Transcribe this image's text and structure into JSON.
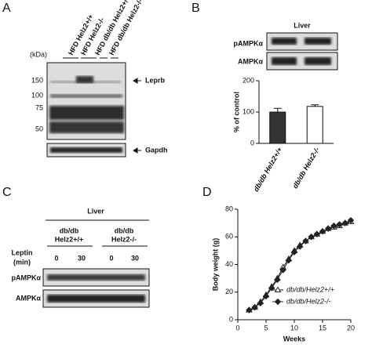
{
  "panel_labels": [
    "A",
    "B",
    "C",
    "D"
  ],
  "panel_a": {
    "lanes": [
      "HFD Helz2+/+",
      "HFD Helz2-/-",
      "HFD db/db Helz2+/+",
      "HFD db/db Helz2-/-"
    ],
    "unit": "(kDa)",
    "markers": [
      150,
      100,
      75,
      50
    ],
    "targets": [
      "Leprb",
      "Gapdh"
    ]
  },
  "panel_b": {
    "tissue": "Liver",
    "blots": [
      "pAMPKα",
      "AMPKα"
    ]
  },
  "panel_c": {
    "tissue": "Liver",
    "groups": [
      [
        "db/db",
        "Helz2+/+"
      ],
      [
        "db/db",
        "Helz2-/-"
      ]
    ],
    "treatment": [
      "Leptin",
      "(min)"
    ],
    "doses": [
      0,
      30,
      0,
      30
    ],
    "blots": [
      "pAMPKα",
      "AMPKα"
    ]
  },
  "chart_data": [
    {
      "type": "bar",
      "y_label": "% of control",
      "categories": [
        "db/db Helz2+/+",
        "db/db Helz2-/-"
      ],
      "values": [
        100,
        118
      ],
      "errors": [
        12,
        5
      ],
      "colors": [
        "#333333",
        "#ffffff"
      ],
      "ylim": [
        0,
        200
      ],
      "yticks": [
        0,
        100,
        200
      ]
    },
    {
      "type": "line",
      "x_label": "Weeks",
      "y_label": "Body weight (g)",
      "x": [
        2,
        3,
        4,
        5,
        6,
        7,
        8,
        9,
        10,
        11,
        12,
        13,
        14,
        15,
        16,
        17,
        18,
        19,
        20
      ],
      "series": [
        {
          "name": "db/db/Helz2+/+",
          "color": "#222222",
          "marker": "triangle-open",
          "values": [
            7,
            9,
            13,
            18,
            24,
            30,
            38,
            44,
            50,
            54,
            57,
            60,
            62,
            64,
            66,
            67,
            68,
            70,
            71
          ]
        },
        {
          "name": "db/db/Helz2-/-",
          "color": "#222222",
          "marker": "diamond",
          "values": [
            7,
            9,
            12,
            17,
            23,
            29,
            36,
            43,
            49,
            53,
            57,
            60,
            62,
            64,
            66,
            68,
            69,
            70,
            72
          ]
        }
      ],
      "xlim": [
        0,
        20
      ],
      "xticks": [
        0,
        5,
        10,
        15,
        20
      ],
      "ylim": [
        0,
        80
      ],
      "yticks": [
        0,
        20,
        40,
        60,
        80
      ],
      "legend": "lower right"
    }
  ]
}
